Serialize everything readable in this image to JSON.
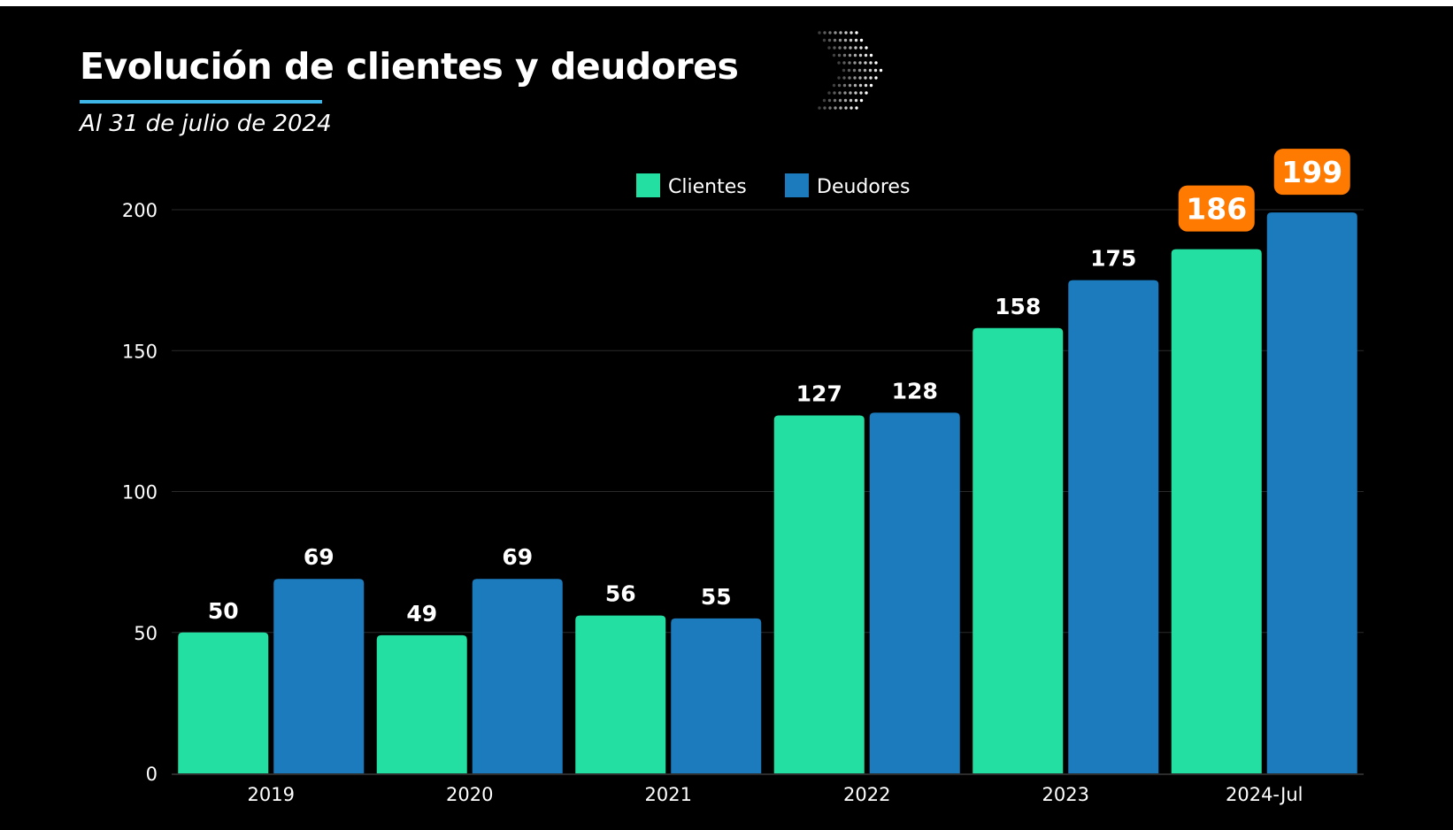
{
  "header": {
    "title": "Evolución de clientes y deudores",
    "subtitle": "Al 31 de julio de 2024"
  },
  "decor": {
    "icon": "chevron-right-dotted-icon"
  },
  "colors": {
    "background": "#000000",
    "clientes": "#23dfa1",
    "deudores": "#1b7bbd",
    "highlight": "#ff7a00",
    "accent": "#3fb6e8",
    "grid": "#2a2a2a",
    "text": "#ffffff"
  },
  "chart_data": {
    "type": "bar",
    "categories": [
      "2019",
      "2020",
      "2021",
      "2022",
      "2023",
      "2024-Jul"
    ],
    "series": [
      {
        "name": "Clientes",
        "values": [
          50,
          49,
          56,
          127,
          158,
          186
        ]
      },
      {
        "name": "Deudores",
        "values": [
          69,
          69,
          55,
          128,
          175,
          199
        ]
      }
    ],
    "xlabel": "",
    "ylabel": "",
    "ylim": [
      0,
      200
    ],
    "yticks": [
      0,
      50,
      100,
      150,
      200
    ],
    "grid": true,
    "legend": "top-center",
    "highlight_category": "2024-Jul"
  }
}
